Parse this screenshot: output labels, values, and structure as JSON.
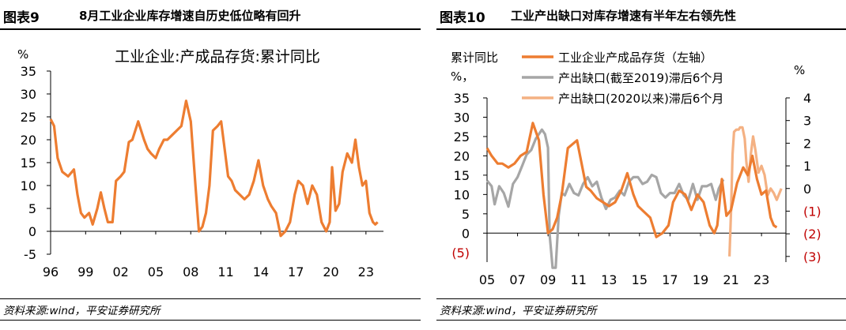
{
  "figures": [
    {
      "number": "图表9",
      "heading": "8月工业企业库存增速自历史低位略有回升",
      "source": "资料来源:wind，平安证券研究所"
    },
    {
      "number": "图表10",
      "heading": "工业产出缺口对库存增速有半年左右领先性",
      "source": "资料来源:wind，平安证券研究所"
    }
  ],
  "colors": {
    "inventory": "#ED7D31",
    "gap_pre": "#A6A6A6",
    "gap_post": "#F4B183",
    "negative_label": "#C00000"
  },
  "chart_data": [
    {
      "type": "line",
      "title": "工业企业:产成品存货:累计同比",
      "ylabel": "%",
      "ylim": [
        -5,
        35
      ],
      "yticks": [
        -5,
        0,
        5,
        10,
        15,
        20,
        25,
        30,
        35
      ],
      "xlim": [
        1996,
        2024.5
      ],
      "xtick_labels": [
        "96",
        "99",
        "02",
        "05",
        "08",
        "11",
        "14",
        "17",
        "20",
        "23"
      ],
      "xtick_values": [
        1996,
        1999,
        2002,
        2005,
        2008,
        2011,
        2014,
        2017,
        2020,
        2023
      ],
      "grid": false,
      "series": [
        {
          "color": "#ED7D31",
          "x": [
            1996.0,
            1996.3,
            1996.6,
            1997.0,
            1997.5,
            1998.0,
            1998.3,
            1998.6,
            1998.9,
            1999.3,
            1999.6,
            2000.0,
            2000.3,
            2000.6,
            2000.9,
            2001.3,
            2001.6,
            2002.0,
            2002.3,
            2002.7,
            2003.0,
            2003.5,
            2004.0,
            2004.3,
            2004.6,
            2005.0,
            2005.3,
            2005.7,
            2006.0,
            2006.4,
            2006.8,
            2007.2,
            2007.6,
            2008.0,
            2008.4,
            2008.7,
            2009.0,
            2009.3,
            2009.6,
            2009.9,
            2010.3,
            2010.6,
            2010.9,
            2011.2,
            2011.5,
            2011.8,
            2012.2,
            2012.6,
            2013.0,
            2013.4,
            2013.8,
            2014.2,
            2014.6,
            2014.9,
            2015.3,
            2015.7,
            2016.1,
            2016.5,
            2016.9,
            2017.2,
            2017.6,
            2018.0,
            2018.4,
            2018.8,
            2019.2,
            2019.6,
            2019.9,
            2020.1,
            2020.4,
            2020.7,
            2021.0,
            2021.4,
            2021.8,
            2022.1,
            2022.4,
            2022.7,
            2023.0,
            2023.3,
            2023.6,
            2023.8,
            2024.0
          ],
          "y": [
            24.5,
            23,
            16,
            13,
            12,
            13.5,
            8,
            4,
            3,
            4,
            1.5,
            5,
            8.5,
            5,
            2,
            2,
            11,
            12,
            13,
            19.5,
            20,
            24,
            20,
            18,
            17,
            16,
            18,
            20,
            20,
            21,
            22,
            23,
            28.5,
            24,
            10,
            0,
            1,
            4,
            10,
            22,
            23,
            24,
            18,
            12,
            11,
            9,
            8,
            7,
            8,
            11,
            15.5,
            10,
            7,
            5.5,
            4,
            -1,
            0,
            2,
            8,
            11,
            10,
            6,
            10,
            8,
            2,
            0,
            2,
            14,
            4.5,
            6,
            13,
            17,
            15,
            20,
            14,
            10,
            11,
            4,
            2,
            1.5,
            2
          ]
        }
      ]
    },
    {
      "type": "line",
      "title": "",
      "ylabel": "累计同比，%",
      "y2label": "%",
      "ylim": [
        -7.5,
        35
      ],
      "yticks": [
        0,
        5,
        10,
        15,
        20,
        25,
        30,
        35
      ],
      "y_extra_labels": [
        "(5)"
      ],
      "y2lim": [
        -3.25,
        4
      ],
      "y2ticks": [
        "4",
        "3",
        "2",
        "1",
        "0",
        "(1)",
        "(2)",
        "(3)"
      ],
      "y2tick_values": [
        4,
        3,
        2,
        1,
        0,
        -1,
        -2,
        -3
      ],
      "xlim": [
        2005,
        2024.6
      ],
      "xtick_labels": [
        "05",
        "07",
        "09",
        "11",
        "13",
        "15",
        "17",
        "19",
        "21",
        "23"
      ],
      "xtick_values": [
        2005,
        2007,
        2009,
        2011,
        2013,
        2015,
        2017,
        2019,
        2021,
        2023
      ],
      "grid": false,
      "legend_position": "top",
      "series": [
        {
          "name": "工业企业产成品存货（左轴）",
          "axis": "left",
          "color": "#ED7D31",
          "x": [
            2005.0,
            2005.3,
            2005.7,
            2006.0,
            2006.4,
            2006.8,
            2007.2,
            2007.6,
            2008.0,
            2008.4,
            2008.7,
            2009.0,
            2009.3,
            2009.6,
            2009.9,
            2010.3,
            2010.6,
            2010.9,
            2011.2,
            2011.5,
            2011.8,
            2012.2,
            2012.6,
            2013.0,
            2013.4,
            2013.8,
            2014.2,
            2014.6,
            2014.9,
            2015.3,
            2015.7,
            2016.1,
            2016.5,
            2016.9,
            2017.2,
            2017.6,
            2018.0,
            2018.4,
            2018.8,
            2019.2,
            2019.6,
            2019.9,
            2020.1,
            2020.4,
            2020.7,
            2021.0,
            2021.4,
            2021.8,
            2022.1,
            2022.4,
            2022.7,
            2023.0,
            2023.3,
            2023.6,
            2023.8,
            2024.0
          ],
          "y": [
            22,
            20,
            18,
            18,
            17,
            18,
            20,
            21,
            28.5,
            24,
            10,
            0,
            1,
            4,
            10,
            22,
            23,
            24,
            18,
            12,
            11,
            9,
            8,
            7,
            8,
            11,
            15.5,
            10,
            7,
            5.5,
            4,
            -1,
            0,
            2,
            8,
            11,
            10,
            6,
            10,
            8,
            2,
            0,
            2,
            14,
            4.5,
            6,
            13,
            17,
            15,
            20,
            14,
            10,
            11,
            4,
            2,
            1.5
          ]
        },
        {
          "name": "产出缺口(截至2019)滞后6个月",
          "axis": "right",
          "color": "#A6A6A6",
          "x": [
            2005.0,
            2005.3,
            2005.5,
            2005.8,
            2006.1,
            2006.4,
            2006.7,
            2007.0,
            2007.3,
            2007.6,
            2007.9,
            2008.2,
            2008.4,
            2008.6,
            2008.8,
            2009.0,
            2009.1,
            2009.3,
            2009.5,
            2009.7,
            2009.9,
            2010.1,
            2010.4,
            2010.7,
            2011.0,
            2011.3,
            2011.6,
            2011.9,
            2012.2,
            2012.5,
            2012.8,
            2013.1,
            2013.4,
            2013.7,
            2014.0,
            2014.3,
            2014.6,
            2014.9,
            2015.2,
            2015.5,
            2015.8,
            2016.1,
            2016.4,
            2016.7,
            2017.0,
            2017.3,
            2017.6,
            2017.9,
            2018.2,
            2018.5,
            2018.8,
            2019.1,
            2019.4,
            2019.7,
            2020.0,
            2020.2,
            2020.5
          ],
          "y": [
            0.35,
            0.1,
            -0.7,
            0.1,
            -0.2,
            -0.8,
            0.2,
            0.5,
            1,
            1.5,
            1.7,
            2.2,
            2.4,
            2.6,
            2.4,
            1.8,
            -2,
            -3.5,
            -3.5,
            -1.2,
            -0.2,
            -0.3,
            0.2,
            -0.2,
            -0.3,
            0.2,
            0.5,
            0.1,
            0.3,
            -0.4,
            -0.9,
            -0.5,
            -0.4,
            -0.1,
            -0.3,
            0.3,
            0.5,
            0.5,
            0.2,
            0.3,
            0.6,
            0.5,
            -0.2,
            -0.4,
            -0.2,
            -0.2,
            0.2,
            -0.3,
            -0.5,
            0.2,
            -0.5,
            0.1,
            0.1,
            0.2,
            -0.5,
            0,
            0.4
          ]
        },
        {
          "name": "产出缺口(2020以来)滞后6个月",
          "axis": "right",
          "color": "#F4B183",
          "x": [
            2020.9,
            2021.0,
            2021.1,
            2021.2,
            2021.35,
            2021.5,
            2021.6,
            2021.75,
            2021.9,
            2022.0,
            2022.15,
            2022.3,
            2022.45,
            2022.6,
            2022.8,
            2023.0,
            2023.2,
            2023.4,
            2023.6,
            2023.8,
            2024.0,
            2024.3
          ],
          "y": [
            -3,
            -1,
            1.5,
            2.5,
            2.6,
            2.6,
            2.7,
            2.7,
            2.2,
            1.2,
            0.3,
            1.5,
            2.3,
            1.7,
            0.7,
            1,
            0.6,
            -0.3,
            0,
            -0.2,
            -0.5,
            0
          ]
        }
      ]
    }
  ]
}
